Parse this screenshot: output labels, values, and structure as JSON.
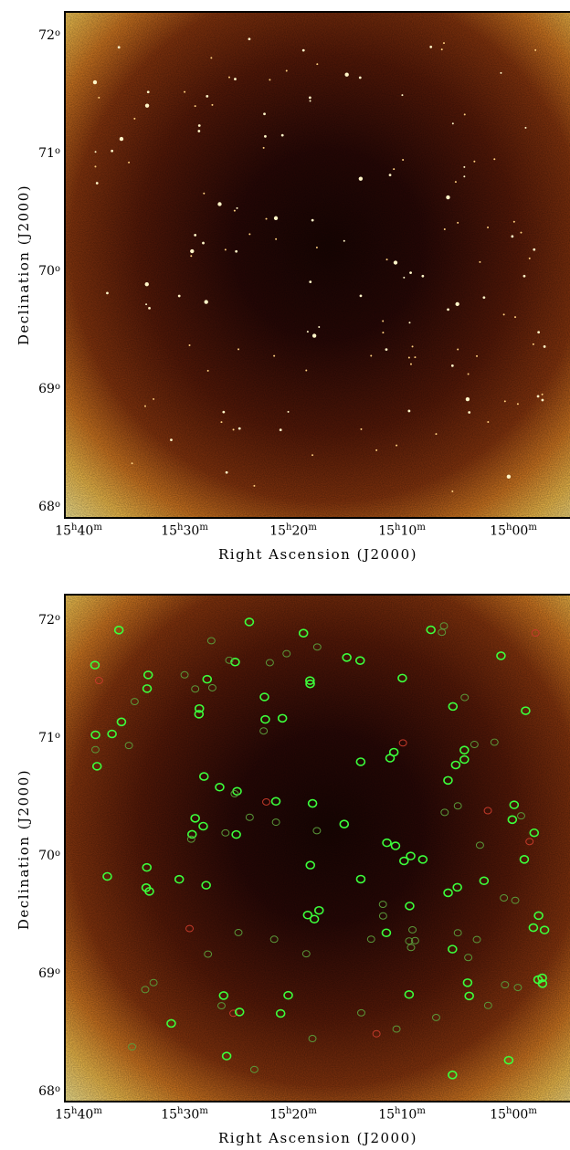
{
  "figure": {
    "panels": [
      {
        "id": "top",
        "ylabel": "Declination (J2000)",
        "xlabel": "Right Ascension (J2000)",
        "yticks": [
          "72",
          "71",
          "70",
          "69",
          "68"
        ],
        "xticks": [
          {
            "h": "15",
            "m": "40"
          },
          {
            "h": "15",
            "m": "30"
          },
          {
            "h": "15",
            "m": "20"
          },
          {
            "h": "15",
            "m": "10"
          },
          {
            "h": "15",
            "m": "00"
          }
        ]
      },
      {
        "id": "bottom",
        "ylabel": "Declination (J2000)",
        "xlabel": "Right Ascension (J2000)",
        "yticks": [
          "72",
          "71",
          "70",
          "69",
          "68"
        ],
        "xticks": [
          {
            "h": "15",
            "m": "40"
          },
          {
            "h": "15",
            "m": "30"
          },
          {
            "h": "15",
            "m": "20"
          },
          {
            "h": "15",
            "m": "10"
          },
          {
            "h": "15",
            "m": "00"
          }
        ]
      }
    ],
    "colors": {
      "center": "#1a0503",
      "mid": "#7a2a0c",
      "edge": "#ffe97a",
      "marker_bright": "#3cff3c",
      "marker_faint": "#5a9a3a",
      "marker_red": "#c43a2a",
      "axis": "#000000"
    }
  }
}
